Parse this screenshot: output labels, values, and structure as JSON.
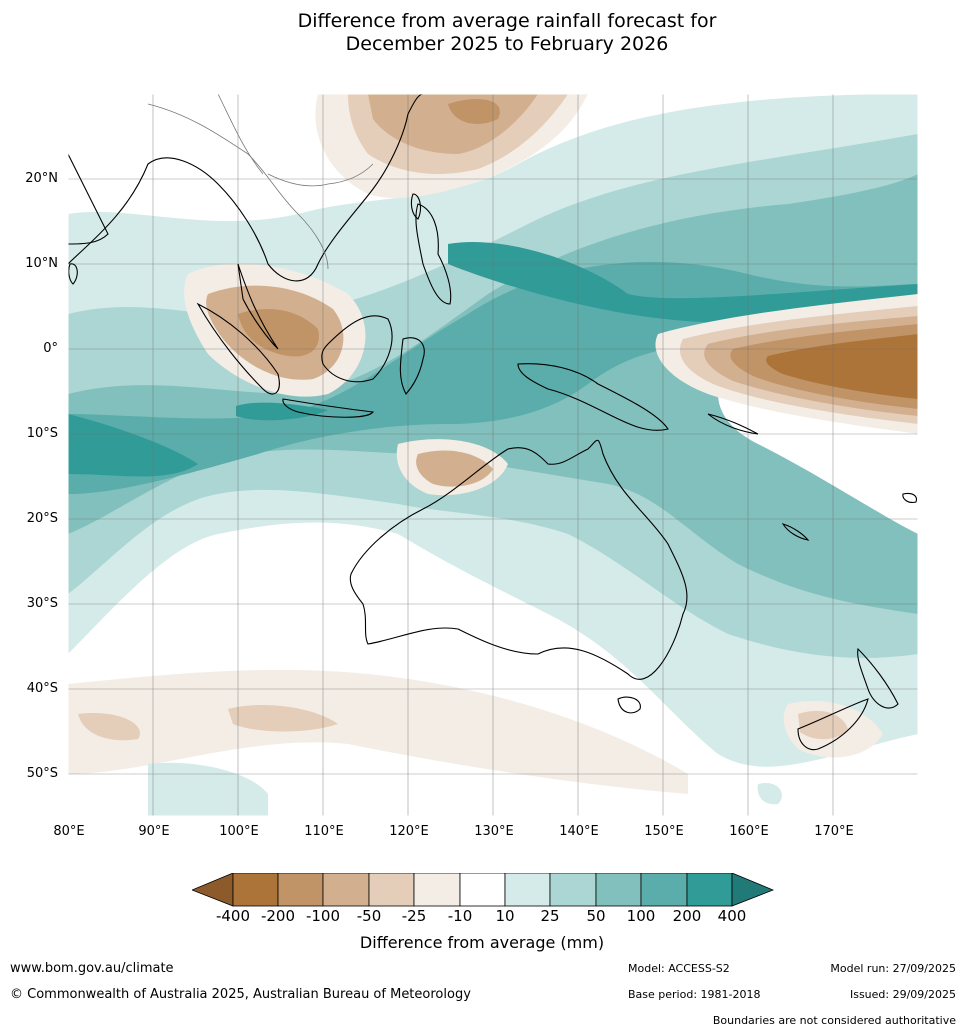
{
  "title_line1": "Difference from average rainfall forecast for",
  "title_line2": "December 2025 to February 2026",
  "latitude_labels": [
    "20°N",
    "10°N",
    "0°",
    "10°S",
    "20°S",
    "30°S",
    "40°S",
    "50°S"
  ],
  "longitude_labels": [
    "80°E",
    "90°E",
    "100°E",
    "110°E",
    "120°E",
    "130°E",
    "140°E",
    "150°E",
    "160°E",
    "170°E"
  ],
  "colorbar": {
    "ticks": [
      "-400",
      "-200",
      "-100",
      "-50",
      "-25",
      "-10",
      "10",
      "25",
      "50",
      "100",
      "200",
      "400"
    ],
    "colors": [
      "#8c5a2b",
      "#ad743a",
      "#c19468",
      "#d2b08f",
      "#e4cdb9",
      "#f3ede6",
      "#ffffff",
      "#d4ebe9",
      "#acd6d4",
      "#82c0bd",
      "#5aadaa",
      "#319b98",
      "#227a78"
    ],
    "label": "Difference from average (mm)"
  },
  "footer": {
    "website": "www.bom.gov.au/climate",
    "copyright": "© Commonwealth of Australia 2025, Australian Bureau of Meteorology",
    "model": "Model: ACCESS-S2",
    "base_period": "Base period: 1981-2018",
    "model_run": "Model run: 27/09/2025",
    "issued": "Issued: 29/09/2025",
    "disclaimer": "Boundaries are not considered authoritative"
  }
}
